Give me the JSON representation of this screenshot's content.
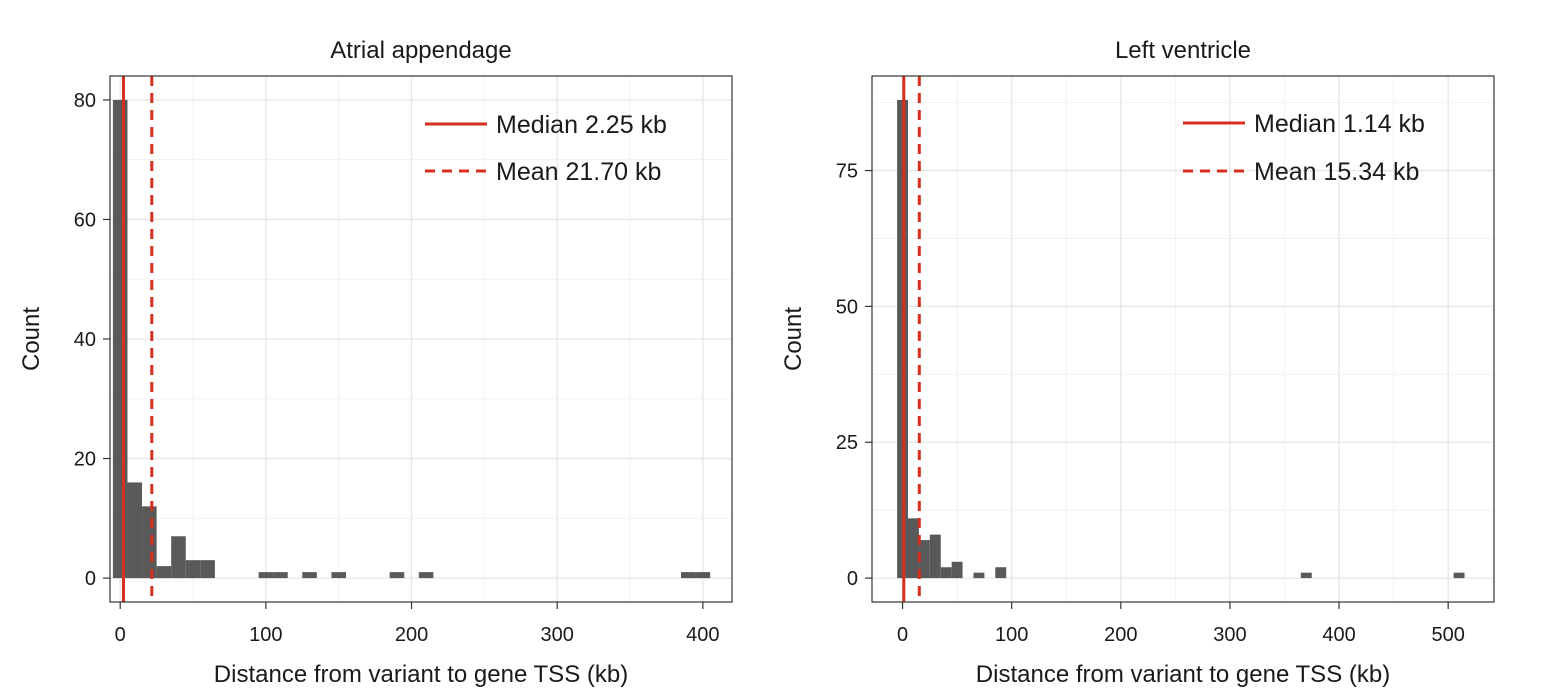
{
  "colors": {
    "bar": "#595959",
    "median_line": "#d62f1f",
    "mean_line": "#d62f1f",
    "grid_major": "#e6e6e6",
    "grid_minor": "#f2f2f2",
    "frame": "#333333"
  },
  "chart_data": [
    {
      "type": "histogram",
      "title": "Atrial appendage",
      "xlabel": "Distance from variant to gene TSS (kb)",
      "ylabel": "Count",
      "xlim": [
        -7,
        420
      ],
      "ylim": [
        -4,
        84
      ],
      "xticks": [
        0,
        100,
        200,
        300,
        400
      ],
      "yticks": [
        0,
        20,
        40,
        60,
        80
      ],
      "grid": true,
      "bin_width": 10,
      "bins": [
        {
          "x0": -5,
          "x1": 5,
          "count": 80
        },
        {
          "x0": 5,
          "x1": 15,
          "count": 16
        },
        {
          "x0": 15,
          "x1": 25,
          "count": 12
        },
        {
          "x0": 25,
          "x1": 35,
          "count": 2
        },
        {
          "x0": 35,
          "x1": 45,
          "count": 7
        },
        {
          "x0": 45,
          "x1": 55,
          "count": 3
        },
        {
          "x0": 55,
          "x1": 65,
          "count": 3
        },
        {
          "x0": 95,
          "x1": 105,
          "count": 1
        },
        {
          "x0": 105,
          "x1": 115,
          "count": 1
        },
        {
          "x0": 125,
          "x1": 135,
          "count": 1
        },
        {
          "x0": 145,
          "x1": 155,
          "count": 1
        },
        {
          "x0": 185,
          "x1": 195,
          "count": 1
        },
        {
          "x0": 205,
          "x1": 215,
          "count": 1
        },
        {
          "x0": 385,
          "x1": 395,
          "count": 1
        },
        {
          "x0": 395,
          "x1": 405,
          "count": 1
        }
      ],
      "median": 2.25,
      "mean": 21.7,
      "legend": {
        "position": "top-right",
        "entries": [
          {
            "label": "Median 2.25 kb",
            "style": "solid"
          },
          {
            "label": "Mean 21.70 kb",
            "style": "dashed"
          }
        ]
      }
    },
    {
      "type": "histogram",
      "title": "Left ventricle",
      "xlabel": "Distance from variant to gene TSS (kb)",
      "ylabel": "Count",
      "xlim": [
        -28,
        542
      ],
      "ylim": [
        -4.4,
        92.4
      ],
      "xticks": [
        0,
        100,
        200,
        300,
        400,
        500
      ],
      "yticks": [
        0,
        25,
        50,
        75
      ],
      "grid": true,
      "bin_width": 10,
      "bins": [
        {
          "x0": -5,
          "x1": 5,
          "count": 88
        },
        {
          "x0": 5,
          "x1": 15,
          "count": 11
        },
        {
          "x0": 15,
          "x1": 25,
          "count": 7
        },
        {
          "x0": 25,
          "x1": 35,
          "count": 8
        },
        {
          "x0": 35,
          "x1": 45,
          "count": 2
        },
        {
          "x0": 45,
          "x1": 55,
          "count": 3
        },
        {
          "x0": 65,
          "x1": 75,
          "count": 1
        },
        {
          "x0": 85,
          "x1": 95,
          "count": 2
        },
        {
          "x0": 365,
          "x1": 375,
          "count": 1
        },
        {
          "x0": 505,
          "x1": 515,
          "count": 1
        }
      ],
      "median": 1.14,
      "mean": 15.34,
      "legend": {
        "position": "top-right",
        "entries": [
          {
            "label": "Median 1.14 kb",
            "style": "solid"
          },
          {
            "label": "Mean 15.34 kb",
            "style": "dashed"
          }
        ]
      }
    }
  ]
}
